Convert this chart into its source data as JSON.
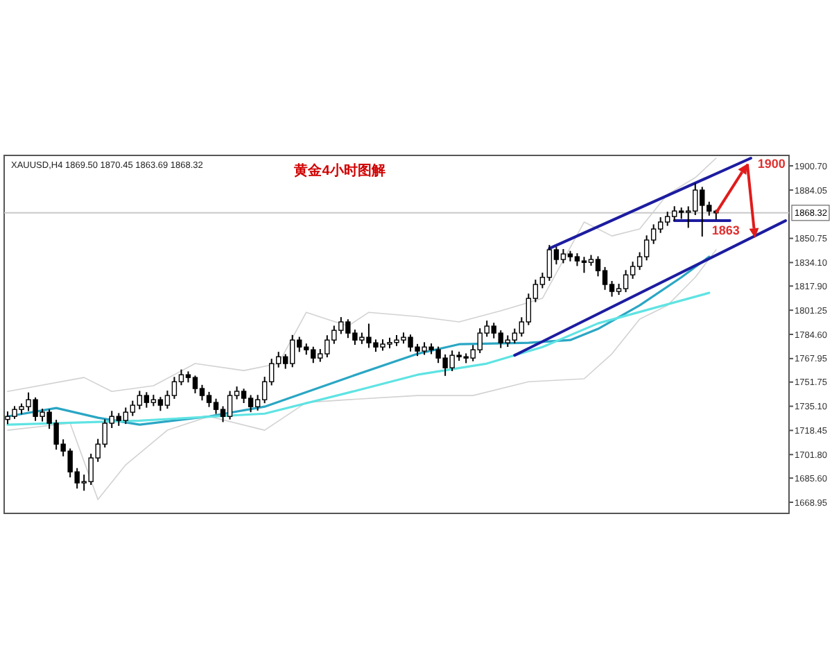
{
  "chart_data": {
    "type": "candlestick",
    "title": "黄金4小时图解",
    "subtitle": "XAUUSD,H4  1869.50 1870.45 1863.69 1868.32",
    "tick_labels": "y",
    "grid": false,
    "categories": [
      null,
      null,
      null,
      null,
      null,
      null,
      null,
      null,
      null,
      null,
      null,
      null,
      null,
      null,
      null,
      null,
      null,
      null,
      null,
      null,
      null,
      null,
      null,
      null,
      null,
      null,
      null,
      null,
      null,
      null,
      null,
      null,
      null,
      null,
      null,
      null,
      null,
      null,
      null,
      null,
      null,
      null,
      null,
      null,
      null,
      null,
      null,
      null,
      null,
      null,
      null,
      null,
      null,
      null,
      null,
      null,
      null,
      null,
      null,
      null,
      null,
      null,
      null,
      null,
      null,
      null,
      null,
      null,
      null,
      null,
      null,
      null,
      null,
      null,
      null,
      null,
      null,
      null,
      null,
      null,
      null,
      null,
      null,
      null,
      null,
      null,
      null,
      null,
      null,
      null,
      null,
      null,
      null,
      null,
      null,
      null,
      null,
      null,
      null,
      null,
      null,
      null,
      null,
      null,
      null,
      null,
      null,
      null,
      null,
      null,
      null,
      null,
      null
    ],
    "ohlc": [
      [
        1726.0,
        1731.5,
        1722.8,
        1728.1
      ],
      [
        1728.1,
        1735.2,
        1726.4,
        1732.9
      ],
      [
        1732.9,
        1737.0,
        1729.5,
        1734.8
      ],
      [
        1734.8,
        1744.6,
        1731.8,
        1739.6
      ],
      [
        1739.6,
        1741.2,
        1725.0,
        1728.1
      ],
      [
        1728.1,
        1733.4,
        1724.6,
        1731.0
      ],
      [
        1731.0,
        1733.0,
        1719.5,
        1723.4
      ],
      [
        1723.4,
        1725.8,
        1705.2,
        1709.0
      ],
      [
        1709.0,
        1712.3,
        1700.6,
        1704.2
      ],
      [
        1704.2,
        1706.0,
        1686.1,
        1689.9
      ],
      [
        1689.9,
        1692.5,
        1678.4,
        1682.3
      ],
      [
        1682.3,
        1688.0,
        1676.9,
        1683.2
      ],
      [
        1683.2,
        1702.4,
        1680.9,
        1699.5
      ],
      [
        1699.5,
        1712.6,
        1696.8,
        1709.0
      ],
      [
        1709.0,
        1726.1,
        1706.7,
        1723.4
      ],
      [
        1723.4,
        1731.9,
        1720.1,
        1728.1
      ],
      [
        1728.1,
        1730.4,
        1721.6,
        1725.3
      ],
      [
        1725.3,
        1734.2,
        1722.9,
        1731.0
      ],
      [
        1731.0,
        1738.9,
        1728.4,
        1735.8
      ],
      [
        1735.8,
        1745.7,
        1733.0,
        1742.5
      ],
      [
        1742.5,
        1744.8,
        1734.1,
        1737.7
      ],
      [
        1737.7,
        1743.0,
        1735.2,
        1739.6
      ],
      [
        1739.6,
        1741.5,
        1731.9,
        1735.8
      ],
      [
        1735.8,
        1745.9,
        1733.4,
        1742.5
      ],
      [
        1742.5,
        1755.3,
        1740.2,
        1752.0
      ],
      [
        1752.0,
        1760.4,
        1749.6,
        1756.8
      ],
      [
        1756.8,
        1759.1,
        1751.5,
        1754.9
      ],
      [
        1754.9,
        1756.2,
        1744.0,
        1747.3
      ],
      [
        1747.3,
        1749.8,
        1739.1,
        1742.5
      ],
      [
        1742.5,
        1745.0,
        1734.6,
        1737.7
      ],
      [
        1737.7,
        1740.3,
        1729.8,
        1732.9
      ],
      [
        1732.9,
        1735.1,
        1724.2,
        1728.1
      ],
      [
        1728.1,
        1745.6,
        1726.0,
        1742.5
      ],
      [
        1742.5,
        1748.7,
        1739.9,
        1745.4
      ],
      [
        1745.4,
        1747.2,
        1737.3,
        1740.6
      ],
      [
        1740.6,
        1742.8,
        1731.0,
        1734.8
      ],
      [
        1734.8,
        1742.9,
        1732.1,
        1739.6
      ],
      [
        1739.6,
        1755.4,
        1737.2,
        1752.0
      ],
      [
        1752.0,
        1767.8,
        1749.5,
        1764.5
      ],
      [
        1764.5,
        1772.6,
        1761.8,
        1769.2
      ],
      [
        1769.2,
        1771.0,
        1760.9,
        1764.5
      ],
      [
        1764.5,
        1784.2,
        1762.0,
        1780.7
      ],
      [
        1780.7,
        1782.9,
        1772.5,
        1775.9
      ],
      [
        1775.9,
        1778.3,
        1770.6,
        1774.0
      ],
      [
        1774.0,
        1776.1,
        1764.9,
        1768.3
      ],
      [
        1768.3,
        1774.5,
        1765.7,
        1771.2
      ],
      [
        1771.2,
        1784.0,
        1768.8,
        1780.7
      ],
      [
        1780.7,
        1790.6,
        1778.1,
        1787.4
      ],
      [
        1787.4,
        1796.5,
        1784.9,
        1793.2
      ],
      [
        1793.2,
        1795.0,
        1782.1,
        1785.5
      ],
      [
        1785.5,
        1787.9,
        1777.4,
        1780.7
      ],
      [
        1780.7,
        1785.8,
        1778.0,
        1782.6
      ],
      [
        1782.6,
        1792.0,
        1775.3,
        1778.8
      ],
      [
        1778.8,
        1781.1,
        1772.6,
        1775.9
      ],
      [
        1775.9,
        1781.2,
        1773.4,
        1777.9
      ],
      [
        1777.9,
        1782.3,
        1775.0,
        1779.0
      ],
      [
        1779.0,
        1784.1,
        1776.6,
        1780.7
      ],
      [
        1780.7,
        1785.9,
        1778.3,
        1782.6
      ],
      [
        1782.6,
        1784.5,
        1772.8,
        1775.9
      ],
      [
        1775.9,
        1778.0,
        1769.7,
        1773.1
      ],
      [
        1773.1,
        1779.2,
        1770.5,
        1775.9
      ],
      [
        1775.9,
        1778.4,
        1771.0,
        1774.0
      ],
      [
        1774.0,
        1776.2,
        1764.9,
        1768.3
      ],
      [
        1768.3,
        1770.8,
        1756.0,
        1761.6
      ],
      [
        1761.6,
        1773.5,
        1759.3,
        1770.2
      ],
      [
        1770.2,
        1772.7,
        1766.4,
        1769.2
      ],
      [
        1769.2,
        1771.5,
        1764.8,
        1768.3
      ],
      [
        1768.3,
        1777.3,
        1766.1,
        1774.0
      ],
      [
        1774.0,
        1788.8,
        1771.7,
        1785.5
      ],
      [
        1785.5,
        1794.1,
        1783.0,
        1790.3
      ],
      [
        1790.3,
        1792.6,
        1781.9,
        1785.5
      ],
      [
        1785.5,
        1787.4,
        1775.2,
        1778.8
      ],
      [
        1778.8,
        1783.9,
        1776.0,
        1780.7
      ],
      [
        1780.7,
        1788.6,
        1778.5,
        1785.5
      ],
      [
        1785.5,
        1796.4,
        1783.1,
        1793.2
      ],
      [
        1793.2,
        1812.7,
        1791.0,
        1809.4
      ],
      [
        1809.4,
        1822.3,
        1806.8,
        1819.0
      ],
      [
        1819.0,
        1827.1,
        1816.4,
        1823.9
      ],
      [
        1823.9,
        1846.2,
        1821.5,
        1842.9
      ],
      [
        1842.9,
        1845.0,
        1832.8,
        1836.2
      ],
      [
        1836.2,
        1843.4,
        1833.6,
        1840.0
      ],
      [
        1840.0,
        1842.1,
        1834.9,
        1838.1
      ],
      [
        1838.1,
        1840.5,
        1831.7,
        1835.2
      ],
      [
        1835.2,
        1838.0,
        1827.0,
        1834.2
      ],
      [
        1834.2,
        1839.3,
        1831.9,
        1836.2
      ],
      [
        1836.2,
        1838.4,
        1824.6,
        1828.5
      ],
      [
        1828.5,
        1831.0,
        1815.3,
        1819.0
      ],
      [
        1819.0,
        1821.4,
        1810.6,
        1814.2
      ],
      [
        1814.2,
        1819.5,
        1811.8,
        1816.1
      ],
      [
        1816.1,
        1828.9,
        1813.7,
        1825.6
      ],
      [
        1825.6,
        1834.7,
        1822.9,
        1831.4
      ],
      [
        1831.4,
        1841.2,
        1829.0,
        1838.1
      ],
      [
        1838.1,
        1852.8,
        1835.6,
        1849.6
      ],
      [
        1849.6,
        1860.4,
        1846.9,
        1857.2
      ],
      [
        1857.2,
        1865.3,
        1854.5,
        1862.0
      ],
      [
        1862.0,
        1869.1,
        1859.4,
        1865.8
      ],
      [
        1865.8,
        1872.9,
        1863.1,
        1869.6
      ],
      [
        1869.6,
        1872.0,
        1864.2,
        1868.7
      ],
      [
        1868.7,
        1872.8,
        1858.0,
        1869.6
      ],
      [
        1869.6,
        1888.7,
        1866.8,
        1884.0
      ],
      [
        1884.0,
        1886.2,
        1852.0,
        1873.5
      ],
      [
        1873.5,
        1876.0,
        1866.4,
        1869.5
      ],
      [
        1869.5,
        1870.45,
        1863.69,
        1868.32
      ],
      null,
      null,
      null,
      null,
      null,
      null,
      null,
      null,
      null,
      null
    ],
    "series": [
      {
        "type": "line",
        "color": "#d2d2d2",
        "values": [
          1745.3,
          null,
          null,
          null,
          null,
          null,
          null,
          null,
          null,
          null,
          null,
          1754.9,
          null,
          null,
          null,
          1745.3,
          null,
          null,
          null,
          null,
          null,
          1749.2,
          null,
          null,
          null,
          null,
          null,
          1764.5,
          null,
          null,
          null,
          null,
          null,
          null,
          1759.7,
          null,
          null,
          null,
          null,
          1764.5,
          null,
          null,
          null,
          1799.8,
          null,
          null,
          null,
          null,
          null,
          1790.3,
          null,
          null,
          1799.8,
          null,
          null,
          null,
          null,
          null,
          null,
          1796.9,
          null,
          null,
          null,
          null,
          null,
          1793.2,
          null,
          null,
          null,
          null,
          null,
          1800.8,
          null,
          null,
          null,
          null,
          null,
          1809.4,
          null,
          null,
          null,
          null,
          null,
          1862.0,
          null,
          null,
          null,
          1852.4,
          null,
          null,
          null,
          1857.2,
          null,
          null,
          null,
          1881.1,
          null,
          null,
          null,
          1892.6,
          null,
          null,
          1906.0,
          null,
          null,
          null,
          null,
          null,
          null,
          null,
          null,
          null,
          null
        ]
      },
      {
        "type": "line",
        "color": "#d2d2d2",
        "values": [
          1718.6,
          null,
          null,
          null,
          null,
          null,
          null,
          null,
          null,
          1723.4,
          null,
          null,
          null,
          1670.8,
          null,
          null,
          null,
          1694.7,
          null,
          null,
          null,
          null,
          null,
          1718.6,
          null,
          null,
          null,
          null,
          null,
          1728.1,
          null,
          null,
          null,
          null,
          null,
          null,
          null,
          1718.6,
          null,
          null,
          null,
          null,
          null,
          1737.7,
          null,
          null,
          null,
          null,
          null,
          1739.6,
          null,
          null,
          null,
          null,
          null,
          null,
          null,
          null,
          null,
          1742.5,
          null,
          null,
          null,
          null,
          null,
          null,
          null,
          1742.5,
          null,
          null,
          null,
          null,
          null,
          null,
          null,
          1752.0,
          null,
          null,
          null,
          null,
          null,
          null,
          null,
          1754.0,
          null,
          null,
          null,
          1771.2,
          null,
          null,
          null,
          1795.1,
          null,
          null,
          null,
          1804.6,
          null,
          null,
          null,
          1823.9,
          null,
          null,
          1842.9,
          null,
          null,
          null,
          null,
          null,
          null,
          null,
          null,
          null,
          null
        ]
      },
      {
        "type": "line",
        "color": "#2aa6c4",
        "values": [
          1728.1,
          null,
          null,
          null,
          null,
          null,
          null,
          1733.9,
          null,
          null,
          null,
          null,
          null,
          1727.2,
          null,
          null,
          null,
          null,
          null,
          1722.4,
          null,
          null,
          null,
          null,
          null,
          null,
          null,
          null,
          null,
          1728.1,
          null,
          null,
          null,
          null,
          null,
          null,
          null,
          1734.8,
          null,
          null,
          null,
          null,
          null,
          null,
          null,
          null,
          null,
          null,
          null,
          1754.9,
          null,
          null,
          null,
          null,
          null,
          null,
          null,
          null,
          null,
          1771.2,
          null,
          null,
          null,
          null,
          null,
          1777.8,
          null,
          null,
          null,
          null,
          null,
          null,
          null,
          null,
          null,
          1778.8,
          null,
          null,
          null,
          null,
          null,
          1780.7,
          null,
          null,
          null,
          1788.4,
          null,
          null,
          null,
          null,
          null,
          1804.6,
          null,
          null,
          null,
          null,
          null,
          1823.9,
          null,
          null,
          null,
          1838.1,
          null,
          null,
          null,
          null,
          null,
          null,
          null,
          null,
          null,
          null,
          null
        ]
      },
      {
        "type": "line",
        "color": "#5fe3e3",
        "values": [
          1722.4,
          null,
          null,
          null,
          null,
          null,
          null,
          null,
          null,
          null,
          null,
          null,
          null,
          null,
          null,
          null,
          null,
          null,
          null,
          1725.2,
          null,
          null,
          null,
          null,
          null,
          null,
          null,
          null,
          null,
          null,
          null,
          null,
          null,
          null,
          null,
          null,
          null,
          1730.0,
          null,
          null,
          null,
          null,
          null,
          null,
          null,
          null,
          null,
          null,
          null,
          1744.4,
          null,
          null,
          null,
          null,
          null,
          null,
          null,
          null,
          null,
          1756.8,
          null,
          null,
          null,
          null,
          null,
          null,
          null,
          null,
          null,
          1764.5,
          null,
          null,
          null,
          null,
          null,
          null,
          null,
          1775.9,
          null,
          null,
          null,
          null,
          null,
          null,
          null,
          1792.2,
          null,
          null,
          null,
          null,
          null,
          null,
          null,
          1802.7,
          null,
          null,
          null,
          null,
          null,
          null,
          null,
          1813.2,
          null,
          null,
          null,
          null,
          null,
          null,
          null,
          null,
          null,
          null,
          null
        ]
      },
      {
        "type": "line",
        "color": "#1c1ca0",
        "values": [
          null,
          null,
          null,
          null,
          null,
          null,
          null,
          null,
          null,
          null,
          null,
          null,
          null,
          null,
          null,
          null,
          null,
          null,
          null,
          null,
          null,
          null,
          null,
          null,
          null,
          null,
          null,
          null,
          null,
          null,
          null,
          null,
          null,
          null,
          null,
          null,
          null,
          null,
          null,
          null,
          null,
          null,
          null,
          null,
          null,
          null,
          null,
          null,
          null,
          null,
          null,
          null,
          null,
          null,
          null,
          null,
          null,
          null,
          null,
          null,
          null,
          null,
          null,
          null,
          null,
          null,
          null,
          null,
          null,
          null,
          null,
          null,
          null,
          null,
          null,
          null,
          null,
          null,
          1843.8,
          null,
          null,
          null,
          null,
          null,
          null,
          null,
          null,
          null,
          null,
          null,
          null,
          null,
          null,
          null,
          null,
          null,
          null,
          null,
          null,
          null,
          null,
          null,
          null,
          null,
          null,
          null,
          null,
          1906.0,
          null,
          null,
          null,
          null,
          null
        ]
      },
      {
        "type": "line",
        "color": "#1c1ca0",
        "values": [
          null,
          null,
          null,
          null,
          null,
          null,
          null,
          null,
          null,
          null,
          null,
          null,
          null,
          null,
          null,
          null,
          null,
          null,
          null,
          null,
          null,
          null,
          null,
          null,
          null,
          null,
          null,
          null,
          null,
          null,
          null,
          null,
          null,
          null,
          null,
          null,
          null,
          null,
          null,
          null,
          null,
          null,
          null,
          null,
          null,
          null,
          null,
          null,
          null,
          null,
          null,
          null,
          null,
          null,
          null,
          null,
          null,
          null,
          null,
          null,
          null,
          null,
          null,
          null,
          null,
          null,
          null,
          null,
          null,
          null,
          null,
          null,
          null,
          1770.2,
          null,
          null,
          null,
          null,
          null,
          null,
          null,
          null,
          null,
          null,
          null,
          null,
          null,
          null,
          null,
          null,
          null,
          null,
          null,
          null,
          null,
          null,
          null,
          null,
          null,
          null,
          null,
          null,
          null,
          null,
          null,
          null,
          null,
          null,
          null,
          null,
          null,
          null,
          1862.9
        ]
      },
      {
        "type": "line",
        "color": "#1c1ca0",
        "values": [
          null,
          null,
          null,
          null,
          null,
          null,
          null,
          null,
          null,
          null,
          null,
          null,
          null,
          null,
          null,
          null,
          null,
          null,
          null,
          null,
          null,
          null,
          null,
          null,
          null,
          null,
          null,
          null,
          null,
          null,
          null,
          null,
          null,
          null,
          null,
          null,
          null,
          null,
          null,
          null,
          null,
          null,
          null,
          null,
          null,
          null,
          null,
          null,
          null,
          null,
          null,
          null,
          null,
          null,
          null,
          null,
          null,
          null,
          null,
          null,
          null,
          null,
          null,
          null,
          null,
          null,
          null,
          null,
          null,
          null,
          null,
          null,
          null,
          null,
          null,
          null,
          null,
          null,
          null,
          null,
          null,
          null,
          null,
          null,
          null,
          null,
          null,
          null,
          null,
          null,
          null,
          null,
          null,
          null,
          null,
          null,
          1863.0,
          null,
          null,
          null,
          null,
          null,
          null,
          null,
          1863.0,
          null,
          null,
          null,
          null,
          null,
          null,
          null,
          null
        ]
      }
    ],
    "ylim": [
      1661.3,
      1907.9
    ],
    "yticks": [
      {
        "value": 1900.7,
        "label": "1900.70"
      },
      {
        "value": 1884.05,
        "label": "1884.05"
      },
      {
        "value": 1850.75,
        "label": "1850.75"
      },
      {
        "value": 1834.1,
        "label": "1834.10"
      },
      {
        "value": 1817.9,
        "label": "1817.90"
      },
      {
        "value": 1801.25,
        "label": "1801.25"
      },
      {
        "value": 1784.6,
        "label": "1784.60"
      },
      {
        "value": 1767.95,
        "label": "1767.95"
      },
      {
        "value": 1751.75,
        "label": "1751.75"
      },
      {
        "value": 1735.1,
        "label": "1735.10"
      },
      {
        "value": 1718.45,
        "label": "1718.45"
      },
      {
        "value": 1701.8,
        "label": "1701.80"
      },
      {
        "value": 1685.6,
        "label": "1685.60"
      },
      {
        "value": 1668.95,
        "label": "1668.95"
      }
    ],
    "ref_lines": [
      {
        "axis": "y",
        "value": 1868.32,
        "label": "1868.32",
        "color": "#c8c8c8"
      }
    ],
    "annotations": [
      "1900",
      "1863"
    ]
  }
}
